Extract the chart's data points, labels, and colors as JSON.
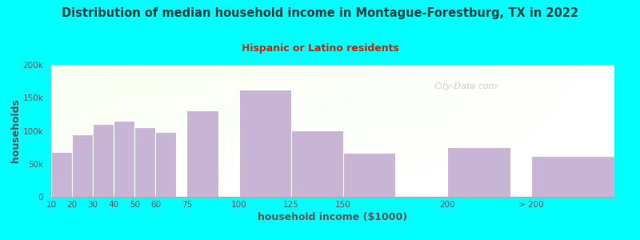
{
  "title": "Distribution of median household income in Montague-Forestburg, TX in 2022",
  "subtitle": "Hispanic or Latino residents",
  "xlabel": "household income ($1000)",
  "ylabel": "households",
  "background_color": "#00FFFF",
  "bar_color": "#c8b4d4",
  "bar_edge_color": "#ffffff",
  "title_color": "#004040",
  "subtitle_color": "#cc2200",
  "axis_label_color": "#555555",
  "tick_label_color": "#555555",
  "watermark": "City-Data.com",
  "categories": [
    "10",
    "20",
    "30",
    "40",
    "50",
    "60",
    "75",
    "100",
    "125",
    "150",
    "200",
    "> 200"
  ],
  "values": [
    68000,
    95000,
    110000,
    115000,
    106000,
    98000,
    131000,
    163000,
    101000,
    67000,
    75000,
    62000
  ],
  "positions": [
    10,
    20,
    30,
    40,
    50,
    60,
    75,
    100,
    125,
    150,
    200,
    240
  ],
  "widths": [
    10,
    10,
    10,
    10,
    10,
    10,
    15,
    25,
    25,
    25,
    30,
    40
  ],
  "ylim": [
    0,
    200000
  ],
  "yticks": [
    0,
    50000,
    100000,
    150000,
    200000
  ],
  "xlim_left": 10,
  "xlim_right": 280
}
